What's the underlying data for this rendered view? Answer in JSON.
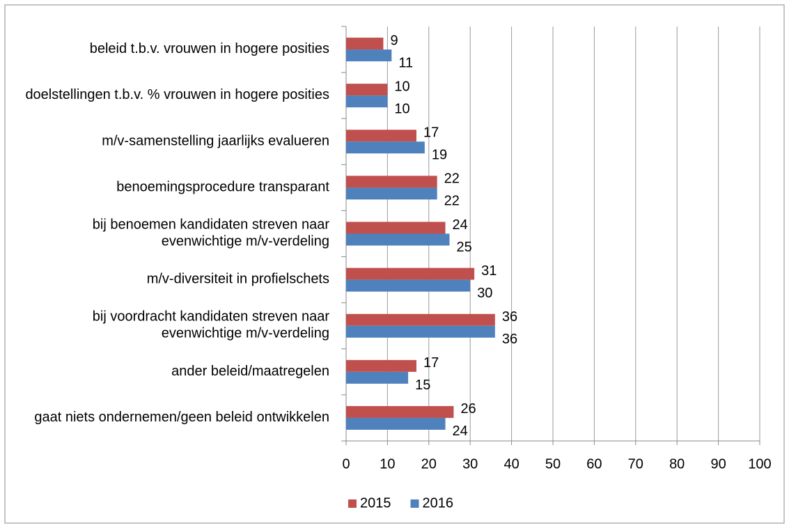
{
  "chart_data": {
    "type": "bar",
    "orientation": "horizontal",
    "categories": [
      "beleid t.b.v. vrouwen in hogere posities",
      "doelstellingen t.b.v. % vrouwen in hogere posities",
      "m/v-samenstelling jaarlijks evalueren",
      "benoemingsprocedure transparant",
      "bij benoemen kandidaten streven naar evenwichtige m/v-verdeling",
      "m/v-diversiteit in profielschets",
      "bij voordracht kandidaten streven naar evenwichtige m/v-verdeling",
      "ander beleid/maatregelen",
      "gaat niets ondernemen/geen beleid ontwikkelen"
    ],
    "series": [
      {
        "name": "2015",
        "color": "#c0504d",
        "values": [
          9,
          10,
          17,
          22,
          24,
          31,
          36,
          17,
          26
        ]
      },
      {
        "name": "2016",
        "color": "#4f81bd",
        "values": [
          11,
          10,
          19,
          22,
          25,
          30,
          36,
          15,
          24
        ]
      }
    ],
    "xlim": [
      0,
      100
    ],
    "xticks": [
      0,
      10,
      20,
      30,
      40,
      50,
      60,
      70,
      80,
      90,
      100
    ],
    "grid": true,
    "legend": "bottom"
  }
}
